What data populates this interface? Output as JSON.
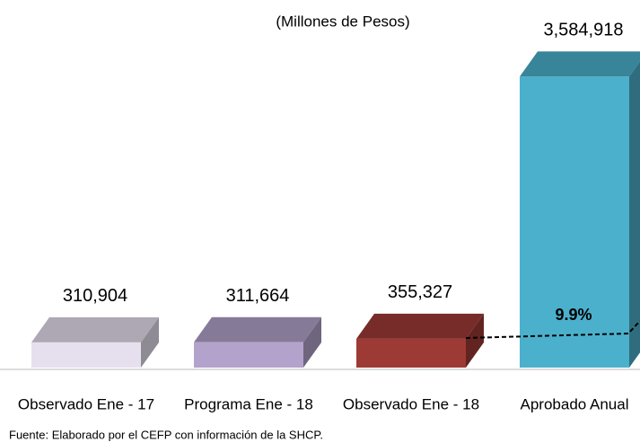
{
  "chart_data": {
    "type": "bar3d",
    "subtitle": "(Millones de Pesos)",
    "categories": [
      "Observado Ene - 17",
      "Programa Ene - 18",
      "Observado Ene - 18",
      "Aprobado Anual"
    ],
    "values": [
      310904,
      311664,
      355327,
      3584918
    ],
    "value_labels": [
      "310,904",
      "311,664",
      "355,327",
      "3,584,918"
    ],
    "colors": [
      "#e6e0ee",
      "#b3a3cc",
      "#9e3a36",
      "#4bb0cc"
    ],
    "ylim": [
      0,
      3700000
    ],
    "annotation": "9.9%",
    "source": "Fuente: Elaborado por el CEFP con información de la SHCP."
  }
}
